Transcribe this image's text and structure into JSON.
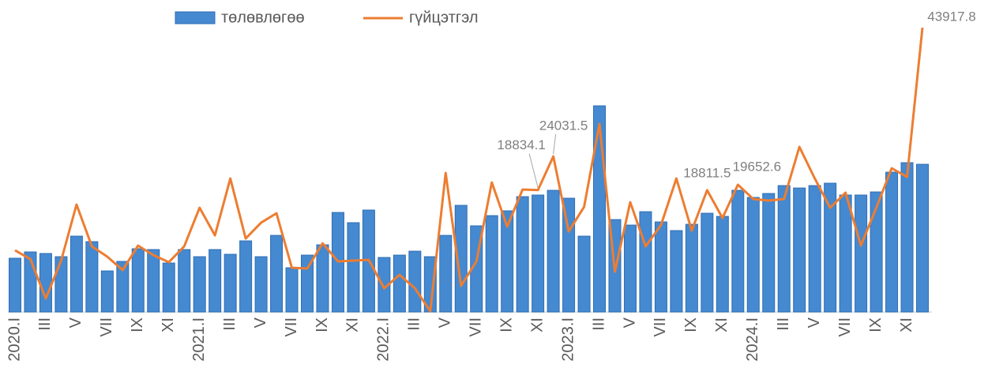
{
  "chart_data": {
    "type": "bar-line",
    "categories": [
      "2020.I",
      null,
      "III",
      null,
      "V",
      null,
      "VII",
      null,
      "IX",
      null,
      "XI",
      null,
      "2021.I",
      null,
      "III",
      null,
      "V",
      null,
      "VII",
      null,
      "IX",
      null,
      "XI",
      null,
      "2022.I",
      null,
      "III",
      null,
      "V",
      null,
      "VII",
      null,
      "IX",
      null,
      "XI",
      null,
      "2023.I",
      null,
      "III",
      null,
      "V",
      null,
      "VII",
      null,
      "IX",
      null,
      "XI",
      null,
      "2024.I",
      null,
      "III",
      null,
      "V",
      null,
      "VII",
      null,
      "IX",
      null,
      "XI",
      null
    ],
    "series": [
      {
        "name": "төлөвлөгөө",
        "type": "bar",
        "color": "#4589d0",
        "values": [
          8300,
          9270,
          9030,
          8540,
          11710,
          10860,
          6340,
          7810,
          9760,
          9640,
          7560,
          9640,
          8540,
          9640,
          8910,
          10980,
          8540,
          11830,
          6830,
          8780,
          10370,
          15370,
          13790,
          15740,
          8420,
          8780,
          9390,
          8540,
          11830,
          16470,
          13300,
          14880,
          15620,
          17810,
          18060,
          18790,
          17570,
          11710,
          31840,
          14270,
          13420,
          15490,
          13910,
          12570,
          13540,
          15250,
          14760,
          18790,
          17690,
          18300,
          19520,
          19150,
          19520,
          19890,
          18060,
          18060,
          18540,
          21590,
          23060,
          22810
        ]
      },
      {
        "name": "гүйцэтгэл",
        "type": "line",
        "color": "#ed7d31",
        "values": [
          9520,
          8170,
          2070,
          7930,
          16590,
          10130,
          8540,
          6470,
          10250,
          8780,
          7690,
          10130,
          16100,
          11830,
          20620,
          11350,
          13790,
          15250,
          6830,
          6710,
          10610,
          7810,
          7930,
          8050,
          3660,
          5730,
          3660,
          120,
          21470,
          4030,
          7810,
          20010,
          13180,
          18910,
          18834.1,
          24031.5,
          12440,
          16230,
          29040,
          6220,
          16960,
          10130,
          13420,
          20620,
          12570,
          18811.5,
          14520,
          19652.6,
          17450,
          17200,
          17450,
          25500,
          20620,
          16100,
          18420,
          10250,
          16100,
          22200,
          20860,
          43917.8
        ],
        "value_labels": [
          null,
          null,
          null,
          null,
          null,
          null,
          null,
          null,
          null,
          null,
          null,
          null,
          null,
          null,
          null,
          null,
          null,
          null,
          null,
          null,
          null,
          null,
          null,
          null,
          null,
          null,
          null,
          null,
          null,
          null,
          null,
          null,
          null,
          null,
          "18834.1",
          "24031.5",
          null,
          null,
          null,
          null,
          null,
          null,
          null,
          null,
          null,
          "18811.5",
          null,
          "19652.6",
          null,
          null,
          null,
          null,
          null,
          null,
          null,
          null,
          null,
          null,
          null,
          "43917.8"
        ]
      }
    ]
  }
}
